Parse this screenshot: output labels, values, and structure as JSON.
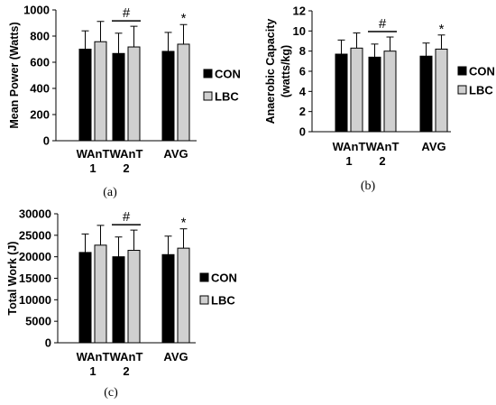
{
  "chart_data": [
    {
      "type": "bar",
      "caption": "(a)",
      "ylabel": "Mean Power (Watts)",
      "categories": [
        [
          "WAnT",
          "1"
        ],
        [
          "WAnT",
          "2"
        ],
        [
          "AVG"
        ]
      ],
      "ylim": [
        0,
        1000
      ],
      "yticks": [
        0,
        200,
        400,
        600,
        800,
        1000
      ],
      "series": [
        {
          "name": "CON",
          "color": "#000000",
          "values": [
            700,
            667,
            683
          ],
          "errors": [
            140,
            155,
            145
          ]
        },
        {
          "name": "LBC",
          "color": "#d0d0d0",
          "values": [
            757,
            717,
            738
          ],
          "errors": [
            155,
            158,
            150
          ]
        }
      ],
      "annotations": [
        {
          "category_index": 1,
          "text": "#",
          "type": "bracket"
        },
        {
          "category_index": 2,
          "text": "*",
          "type": "star"
        }
      ],
      "legend": "right"
    },
    {
      "type": "bar",
      "caption": "(b)",
      "ylabel": [
        "Anaerobic Capacity",
        "(watts/kg)"
      ],
      "categories": [
        [
          "WAnT",
          "1"
        ],
        [
          "WAnT",
          "2"
        ],
        [
          "AVG"
        ]
      ],
      "ylim": [
        0,
        12
      ],
      "yticks": [
        0,
        2,
        4,
        6,
        8,
        10,
        12
      ],
      "series": [
        {
          "name": "CON",
          "color": "#000000",
          "values": [
            7.7,
            7.4,
            7.5
          ],
          "errors": [
            1.4,
            1.3,
            1.3
          ]
        },
        {
          "name": "LBC",
          "color": "#d0d0d0",
          "values": [
            8.3,
            8.0,
            8.2
          ],
          "errors": [
            1.5,
            1.4,
            1.4
          ]
        }
      ],
      "annotations": [
        {
          "category_index": 1,
          "text": "#",
          "type": "bracket"
        },
        {
          "category_index": 2,
          "text": "*",
          "type": "star"
        }
      ],
      "legend": "right"
    },
    {
      "type": "bar",
      "caption": "(c)",
      "ylabel": "Total Work (J)",
      "categories": [
        [
          "WAnT",
          "1"
        ],
        [
          "WAnT",
          "2"
        ],
        [
          "AVG"
        ]
      ],
      "ylim": [
        0,
        30000
      ],
      "yticks": [
        0,
        5000,
        10000,
        15000,
        20000,
        25000,
        30000
      ],
      "series": [
        {
          "name": "CON",
          "color": "#000000",
          "values": [
            21000,
            20000,
            20500
          ],
          "errors": [
            4300,
            4600,
            4300
          ]
        },
        {
          "name": "LBC",
          "color": "#d0d0d0",
          "values": [
            22700,
            21500,
            22000
          ],
          "errors": [
            4600,
            4700,
            4500
          ]
        }
      ],
      "annotations": [
        {
          "category_index": 1,
          "text": "#",
          "type": "bracket"
        },
        {
          "category_index": 2,
          "text": "*",
          "type": "star"
        }
      ],
      "legend": "right"
    }
  ]
}
